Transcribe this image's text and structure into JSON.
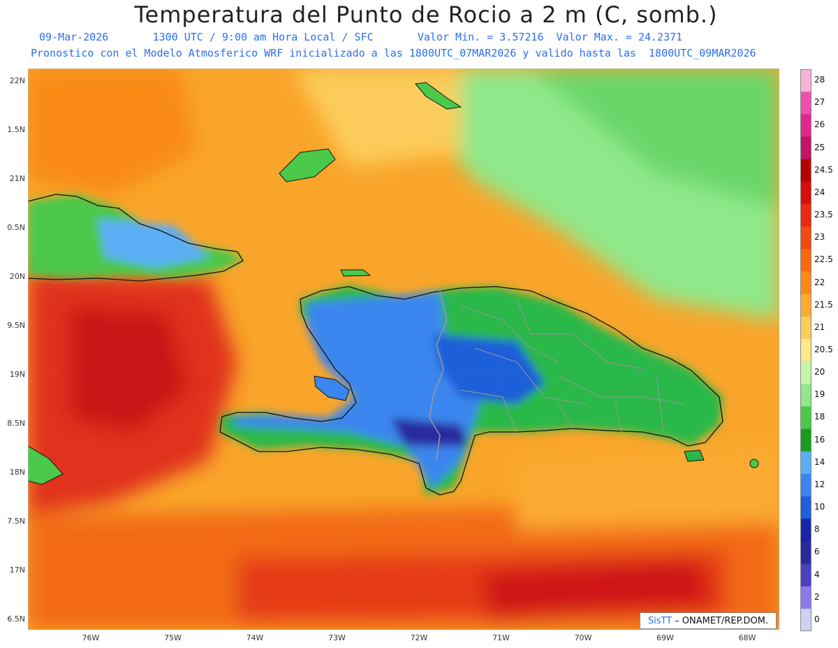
{
  "title": "Temperatura del Punto de Rocio a 2 m (C, somb.)",
  "header": {
    "date": "09-Mar-2026",
    "time": "1300 UTC / 9:00 am Hora Local / SFC",
    "min_label": "Valor Min. = 3.57216",
    "max_label": "Valor Max. = 24.2371",
    "model_info": "Pronostico con el Modelo Atmosferico WRF inicializado a las 1800UTC_07MAR2026 y valido hasta las  1800UTC_09MAR2026"
  },
  "lat_labels": [
    "22N",
    "1.5N",
    "21N",
    "0.5N",
    "20N",
    "9.5N",
    "19N",
    "8.5N",
    "18N",
    "7.5N",
    "17N",
    "6.5N"
  ],
  "lon_labels": [
    "76W",
    "75W",
    "74W",
    "73W",
    "72W",
    "71W",
    "70W",
    "69W",
    "68W"
  ],
  "colorbar": {
    "labels": [
      "28",
      "27",
      "26",
      "25",
      "24.5",
      "24",
      "23.5",
      "23",
      "22.5",
      "22",
      "21.5",
      "21",
      "20.5",
      "20",
      "19",
      "18",
      "16",
      "14",
      "12",
      "10",
      "8",
      "6",
      "4",
      "2",
      "0"
    ],
    "colors": [
      "#f5b4d8",
      "#ee4fb1",
      "#e0298d",
      "#c41469",
      "#b80000",
      "#d80c0c",
      "#eb2a12",
      "#f24a10",
      "#f56a0c",
      "#f98a16",
      "#fbab30",
      "#fccd5c",
      "#fbe98a",
      "#c6f5a8",
      "#8fe88a",
      "#4cc84a",
      "#1a9c1e",
      "#5aaef5",
      "#3a86ee",
      "#1f5fd8",
      "#1a24a6",
      "#2a2a9e",
      "#4a40c0",
      "#8a7ae8",
      "#cfd0f4"
    ]
  },
  "credit": {
    "brand": "SisTT",
    "text": "– ONAMET/REP.DOM."
  },
  "colors": {
    "title_blue": "#2a6ff0"
  }
}
